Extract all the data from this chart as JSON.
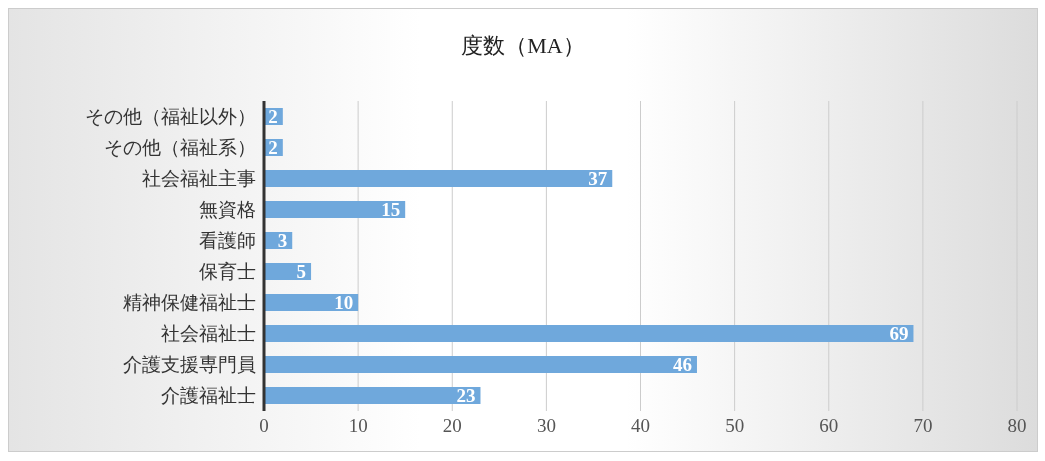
{
  "chart_data": {
    "type": "bar",
    "orientation": "horizontal",
    "title": "度数（MA）",
    "categories": [
      "その他（福祉以外）",
      "その他（福祉系）",
      "社会福祉主事",
      "無資格",
      "看護師",
      "保育士",
      "精神保健福祉士",
      "社会福祉士",
      "介護支援専門員",
      "介護福祉士"
    ],
    "values": [
      2,
      2,
      37,
      15,
      3,
      5,
      10,
      69,
      46,
      23
    ],
    "color": "#6fa8dc",
    "xlim": [
      0,
      80
    ],
    "xticks": [
      0,
      10,
      20,
      30,
      40,
      50,
      60,
      70,
      80
    ],
    "grid": "x",
    "data_labels": true
  }
}
